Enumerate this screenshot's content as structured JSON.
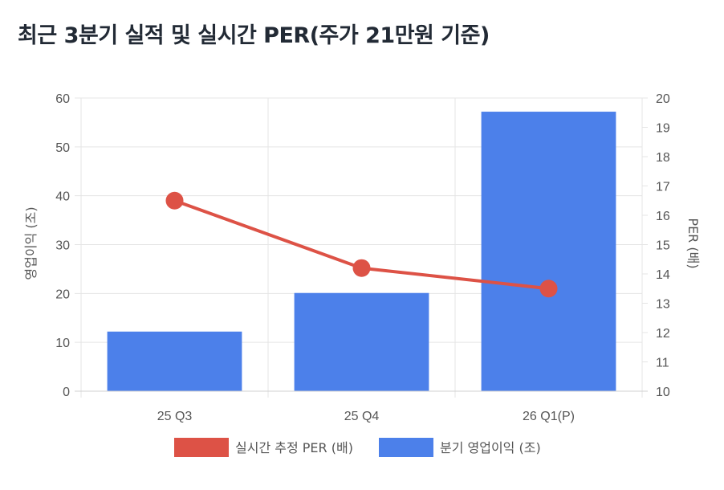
{
  "title": "최근 3분기 실적 및 실시간 PER(주가 21만원 기준)",
  "chart_data": {
    "type": "bar",
    "categories": [
      "25 Q3",
      "25 Q4",
      "26 Q1(P)"
    ],
    "series": [
      {
        "name": "실시간 추정 PER (배)",
        "type": "line",
        "axis": "right",
        "color": "#dd5246",
        "values": [
          16.5,
          14.2,
          13.5
        ]
      },
      {
        "name": "분기 영업이익 (조)",
        "type": "bar",
        "axis": "left",
        "color": "#4c80ea",
        "values": [
          12.2,
          20.1,
          57.2
        ]
      }
    ],
    "y_left": {
      "label": "영업이익 (조)",
      "range": [
        0,
        60
      ],
      "ticks": [
        0,
        10,
        20,
        30,
        40,
        50,
        60
      ]
    },
    "y_right": {
      "label": "PER (배)",
      "range": [
        10,
        20
      ],
      "ticks": [
        10,
        11,
        12,
        13,
        14,
        15,
        16,
        17,
        18,
        19,
        20
      ]
    },
    "grid": true,
    "legend": "bottom"
  }
}
